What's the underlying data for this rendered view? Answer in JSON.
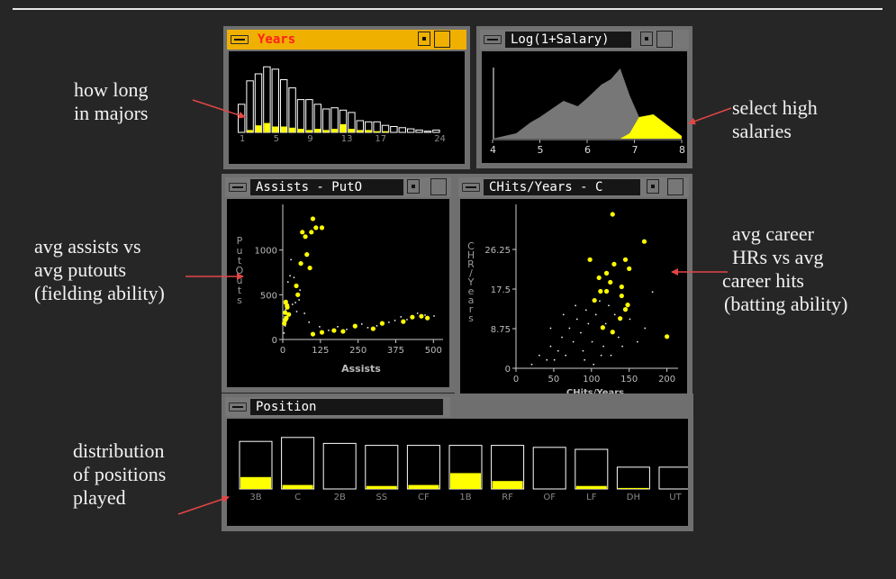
{
  "annotations": {
    "years_l1": "how long",
    "years_l2": "in majors",
    "salary_l1": "select high",
    "salary_l2": "salaries",
    "assists_l1": "avg assists vs",
    "assists_l2": "avg putouts",
    "assists_l3": "(fielding ability)",
    "chits_l1": "avg career",
    "chits_l2": "HRs vs avg",
    "chits_l3": "career hits",
    "chits_l4": "(batting ability)",
    "pos_l1": "distribution",
    "pos_l2": "of positions",
    "pos_l3": "played"
  },
  "windows": {
    "years": "Years",
    "salary": "Log(1+Salary)",
    "assists": "Assists  - PutO",
    "chits": "CHits/Years  - C",
    "position": "Position"
  },
  "colors": {
    "highlight": "#ffff00",
    "selected_title": "#f0b000",
    "title_text_selected": "#ff2020",
    "annotation_arrow": "#e24646"
  },
  "chart_data": [
    {
      "type": "bar",
      "panel": "years",
      "x_tick_labels": [
        "1",
        "5",
        "9",
        "13",
        "17",
        "24"
      ],
      "categories": [
        1,
        2,
        3,
        4,
        5,
        6,
        7,
        8,
        9,
        10,
        11,
        12,
        13,
        14,
        15,
        16,
        17,
        18,
        19,
        20,
        21,
        22,
        23,
        24
      ],
      "series": [
        {
          "values": [
            24,
            44,
            50,
            56,
            54,
            45,
            38,
            28,
            28,
            24,
            20,
            21,
            19,
            17,
            10,
            9,
            9,
            6,
            5,
            4,
            3,
            2,
            1,
            2
          ]
        },
        {
          "values": [
            0,
            2,
            6,
            8,
            5,
            5,
            4,
            3,
            2,
            3,
            2,
            3,
            7,
            3,
            2,
            2,
            1,
            1,
            0,
            0,
            0,
            0,
            0,
            0
          ]
        }
      ]
    },
    {
      "type": "area",
      "panel": "log-salary",
      "x": [
        4,
        4.5,
        4.8,
        5,
        5.5,
        5.8,
        6,
        6.3,
        6.5,
        6.7,
        6.9,
        7.1,
        7.4,
        7.7,
        8
      ],
      "x_tick_labels": [
        "4",
        "5",
        "6",
        "7",
        "8"
      ],
      "xlim": [
        4,
        8
      ],
      "series": [
        {
          "values": [
            0,
            2,
            6,
            8,
            14,
            12,
            15,
            20,
            22,
            26,
            16,
            8,
            3,
            1,
            0
          ]
        },
        {
          "values": [
            0,
            0,
            0,
            0,
            0,
            0,
            0,
            0,
            0,
            0,
            2,
            8,
            9,
            5,
            1
          ]
        }
      ]
    },
    {
      "type": "scatter",
      "panel": "assists-putouts",
      "xlabel": "Assists",
      "ylabel": "PutOuts",
      "x_tick_labels": [
        "0",
        "125",
        "250",
        "375",
        "500"
      ],
      "y_tick_labels": [
        "0",
        "500",
        "1000"
      ],
      "xlim": [
        0,
        520
      ],
      "ylim": [
        0,
        1450
      ],
      "series": [
        {
          "values": [
            [
              5,
              180
            ],
            [
              8,
              300
            ],
            [
              12,
              240
            ],
            [
              15,
              360
            ],
            [
              20,
              280
            ],
            [
              9,
              220
            ],
            [
              45,
              600
            ],
            [
              60,
              850
            ],
            [
              75,
              1150
            ],
            [
              95,
              1200
            ],
            [
              110,
              1250
            ],
            [
              100,
              1350
            ],
            [
              130,
              1250
            ],
            [
              65,
              1200
            ],
            [
              80,
              950
            ],
            [
              90,
              800
            ],
            [
              50,
              500
            ],
            [
              100,
              60
            ],
            [
              130,
              80
            ],
            [
              170,
              100
            ],
            [
              200,
              90
            ],
            [
              240,
              150
            ],
            [
              300,
              120
            ],
            [
              330,
              180
            ],
            [
              400,
              200
            ],
            [
              430,
              250
            ],
            [
              460,
              260
            ],
            [
              480,
              240
            ],
            [
              10,
              420
            ],
            [
              14,
              380
            ]
          ]
        },
        {
          "values": [
            [
              2,
              80
            ],
            [
              4,
              260
            ],
            [
              7,
              340
            ],
            [
              3,
              410
            ],
            [
              6,
              160
            ],
            [
              30,
              400
            ],
            [
              35,
              700
            ],
            [
              40,
              420
            ],
            [
              55,
              560
            ],
            [
              70,
              300
            ],
            [
              85,
              200
            ],
            [
              120,
              150
            ],
            [
              150,
              110
            ],
            [
              180,
              150
            ],
            [
              210,
              120
            ],
            [
              260,
              180
            ],
            [
              280,
              140
            ],
            [
              310,
              160
            ],
            [
              350,
              200
            ],
            [
              370,
              220
            ],
            [
              390,
              260
            ],
            [
              410,
              230
            ],
            [
              445,
              300
            ],
            [
              470,
              280
            ],
            [
              500,
              270
            ],
            [
              25,
              900
            ],
            [
              15,
              650
            ],
            [
              22,
              720
            ],
            [
              44,
              320
            ],
            [
              52,
              450
            ]
          ]
        }
      ]
    },
    {
      "type": "scatter",
      "panel": "chits-chr",
      "xlabel": "CHits/Years",
      "ylabel": "CHR/Years",
      "x_tick_labels": [
        "0",
        "50",
        "100",
        "150",
        "200"
      ],
      "y_tick_labels": [
        "0",
        "8.75",
        "17.5",
        "26.25"
      ],
      "xlim": [
        0,
        210
      ],
      "ylim": [
        0,
        35
      ],
      "series": [
        {
          "values": [
            [
              128,
              34
            ],
            [
              170,
              28
            ],
            [
              145,
              24
            ],
            [
              130,
              23
            ],
            [
              150,
              22
            ],
            [
              120,
              21
            ],
            [
              98,
              24
            ],
            [
              110,
              20
            ],
            [
              125,
              19
            ],
            [
              140,
              18
            ],
            [
              112,
              17
            ],
            [
              140,
              16
            ],
            [
              148,
              14
            ],
            [
              138,
              11
            ],
            [
              115,
              9
            ],
            [
              128,
              8
            ],
            [
              145,
              13
            ],
            [
              200,
              7
            ],
            [
              120,
              17
            ],
            [
              104,
              15
            ]
          ]
        },
        {
          "values": [
            [
              20,
              1
            ],
            [
              30,
              3
            ],
            [
              40,
              2
            ],
            [
              45,
              5
            ],
            [
              55,
              4
            ],
            [
              60,
              7
            ],
            [
              65,
              3
            ],
            [
              70,
              9
            ],
            [
              75,
              6
            ],
            [
              80,
              11
            ],
            [
              85,
              8
            ],
            [
              88,
              4
            ],
            [
              92,
              13
            ],
            [
              95,
              10
            ],
            [
              100,
              6
            ],
            [
              105,
              12
            ],
            [
              110,
              15
            ],
            [
              115,
              5
            ],
            [
              118,
              10
            ],
            [
              122,
              14
            ],
            [
              125,
              3
            ],
            [
              130,
              12
            ],
            [
              135,
              7
            ],
            [
              140,
              5
            ],
            [
              150,
              11
            ],
            [
              160,
              6
            ],
            [
              180,
              17
            ],
            [
              45,
              9
            ],
            [
              50,
              2
            ],
            [
              62,
              12
            ],
            [
              78,
              14
            ],
            [
              90,
              2
            ],
            [
              102,
              1
            ],
            [
              112,
              3
            ],
            [
              170,
              9
            ]
          ]
        }
      ]
    },
    {
      "type": "bar",
      "panel": "position",
      "categories": [
        "3B",
        "C",
        "2B",
        "SS",
        "CF",
        "1B",
        "RF",
        "OF",
        "LF",
        "DH",
        "UT"
      ],
      "series": [
        {
          "values": [
            48,
            52,
            46,
            44,
            44,
            44,
            44,
            42,
            40,
            22,
            22
          ]
        },
        {
          "values": [
            12,
            4,
            0,
            3,
            4,
            16,
            8,
            0,
            3,
            1,
            0
          ]
        }
      ]
    }
  ]
}
